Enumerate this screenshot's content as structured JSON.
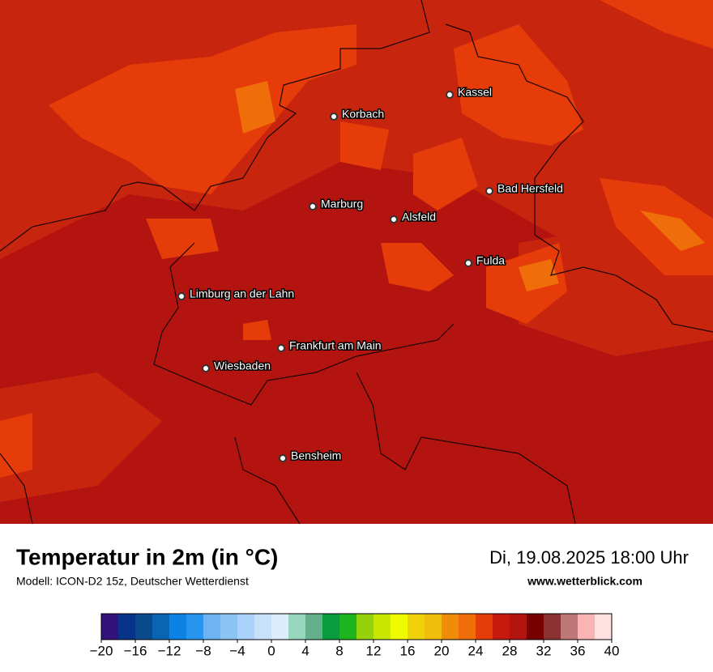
{
  "map": {
    "cities": [
      "Kassel",
      "Korbach",
      "Bad Hersfeld",
      "Marburg",
      "Alsfeld",
      "Fulda",
      "Limburg an der Lahn",
      "Frankfurt am Main",
      "Wiesbaden",
      "Bensheim"
    ]
  },
  "footer": {
    "title": "Temperatur in 2m (in °C)",
    "model": "Modell: ICON-D2 15z, Deutscher Wetterdienst",
    "datetime": "Di, 19.08.2025 18:00 Uhr",
    "website": "www.wetterblick.com"
  },
  "colorbar": {
    "range": [
      -20,
      40
    ],
    "colors": [
      "#32127a",
      "#08338a",
      "#0a4a8c",
      "#0a64b4",
      "#0a82e6",
      "#2896f0",
      "#6eb4f5",
      "#8cc3f5",
      "#aad2fa",
      "#c8e1fa",
      "#dcecfc",
      "#96d7be",
      "#64af8c",
      "#0a9b3c",
      "#1eb41e",
      "#96d20a",
      "#c8e600",
      "#f0fa00",
      "#f0d20a",
      "#f0be0a",
      "#f08c0a",
      "#f06e0a",
      "#e63c0a",
      "#c8190f",
      "#b4140f",
      "#780000",
      "#8c3232",
      "#be7878",
      "#fab4b4",
      "#ffe1e1"
    ],
    "ticks": [
      {
        "value": -20,
        "label": "−20"
      },
      {
        "value": -16,
        "label": "−16"
      },
      {
        "value": -12,
        "label": "−12"
      },
      {
        "value": -8,
        "label": "−8"
      },
      {
        "value": -4,
        "label": "−4"
      },
      0,
      4,
      8,
      12,
      16,
      20,
      24,
      28,
      32,
      36,
      40
    ]
  }
}
